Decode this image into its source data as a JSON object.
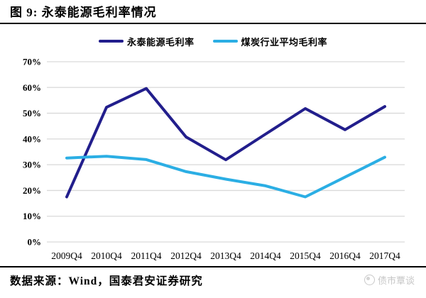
{
  "title": "图 9: 永泰能源毛利率情况",
  "footer": {
    "source": "数据来源：Wind，国泰君安证券研究",
    "watermark": "债市覃谈"
  },
  "colors": {
    "series1": "#221E8C",
    "series2": "#2BAEE4",
    "gridline": "#D9D9D9",
    "rule": "#000000",
    "watermark_gray": "#C6C6C6"
  },
  "chart_data": {
    "type": "line",
    "title": "永泰能源毛利率情况",
    "categories": [
      "2009Q4",
      "2010Q4",
      "2011Q4",
      "2012Q4",
      "2013Q4",
      "2014Q4",
      "2015Q4",
      "2016Q4",
      "2017Q4"
    ],
    "series": [
      {
        "name": "永泰能源毛利率",
        "color": "#221E8C",
        "values": [
          17.5,
          52.3,
          59.6,
          40.8,
          31.9,
          41.9,
          51.8,
          43.6,
          52.6
        ]
      },
      {
        "name": "煤炭行业平均毛利率",
        "color": "#2BAEE4",
        "values": [
          32.6,
          33.3,
          32.0,
          27.3,
          24.4,
          21.8,
          17.5,
          25.2,
          32.9
        ]
      }
    ],
    "xlabel": "",
    "ylabel": "",
    "ylim": [
      0,
      70
    ],
    "ytick_step": 10,
    "ytick_suffix": "%",
    "grid": true,
    "legend_position": "top"
  }
}
